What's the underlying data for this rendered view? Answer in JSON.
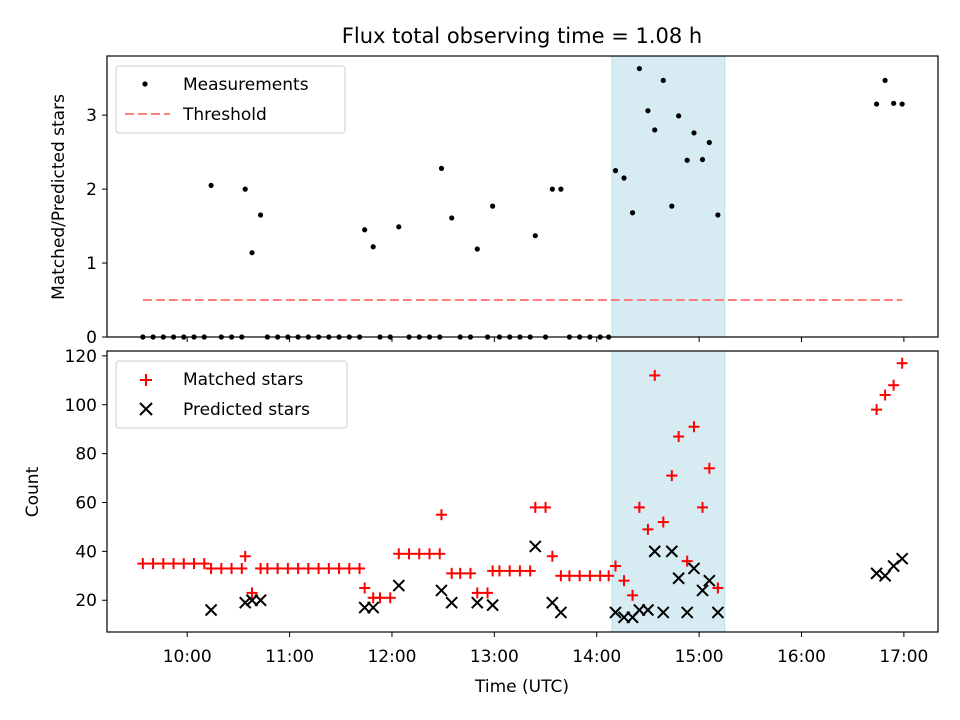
{
  "title": "Flux total observing time = 1.08 h",
  "shaded_span": {
    "start": "14:09",
    "end": "15:15",
    "color": "#add8e6"
  },
  "chart_data": [
    {
      "type": "scatter",
      "ylabel": "Matched/Predicted stars",
      "ylim": [
        0,
        3.8
      ],
      "yticks": [
        0,
        1,
        2,
        3
      ],
      "legend": {
        "location": "upper-left",
        "entries": [
          "Measurements",
          "Threshold"
        ]
      },
      "series": [
        {
          "name": "Measurements",
          "color": "#000000",
          "marker": "dot",
          "points": [
            [
              "09:34",
              0
            ],
            [
              "09:40",
              0
            ],
            [
              "09:46",
              0
            ],
            [
              "09:52",
              0
            ],
            [
              "09:58",
              0
            ],
            [
              "10:04",
              0
            ],
            [
              "10:10",
              0
            ],
            [
              "10:14",
              2.05
            ],
            [
              "10:20",
              0
            ],
            [
              "10:26",
              0
            ],
            [
              "10:32",
              0
            ],
            [
              "10:34",
              2.0
            ],
            [
              "10:38",
              1.14
            ],
            [
              "10:43",
              1.65
            ],
            [
              "10:47",
              0
            ],
            [
              "10:53",
              0
            ],
            [
              "10:59",
              0
            ],
            [
              "11:05",
              0
            ],
            [
              "11:11",
              0
            ],
            [
              "11:17",
              0
            ],
            [
              "11:23",
              0
            ],
            [
              "11:29",
              0
            ],
            [
              "11:35",
              0
            ],
            [
              "11:41",
              0
            ],
            [
              "11:44",
              1.45
            ],
            [
              "11:49",
              1.22
            ],
            [
              "11:53",
              0
            ],
            [
              "11:59",
              0
            ],
            [
              "12:04",
              1.49
            ],
            [
              "12:10",
              0
            ],
            [
              "12:16",
              0
            ],
            [
              "12:22",
              0
            ],
            [
              "12:28",
              0
            ],
            [
              "12:29",
              2.28
            ],
            [
              "12:35",
              1.61
            ],
            [
              "12:40",
              0
            ],
            [
              "12:46",
              0
            ],
            [
              "12:50",
              1.19
            ],
            [
              "12:56",
              0
            ],
            [
              "12:59",
              1.77
            ],
            [
              "13:03",
              0
            ],
            [
              "13:09",
              0
            ],
            [
              "13:15",
              0
            ],
            [
              "13:21",
              0
            ],
            [
              "13:24",
              1.37
            ],
            [
              "13:30",
              0
            ],
            [
              "13:34",
              2.0
            ],
            [
              "13:39",
              2.0
            ],
            [
              "13:44",
              0
            ],
            [
              "13:50",
              0
            ],
            [
              "13:56",
              0
            ],
            [
              "14:02",
              0
            ],
            [
              "14:07",
              0
            ],
            [
              "14:11",
              2.25
            ],
            [
              "14:16",
              2.15
            ],
            [
              "14:21",
              1.68
            ],
            [
              "14:25",
              3.63
            ],
            [
              "14:30",
              3.06
            ],
            [
              "14:34",
              2.8
            ],
            [
              "14:39",
              3.47
            ],
            [
              "14:44",
              1.77
            ],
            [
              "14:48",
              2.99
            ],
            [
              "14:53",
              2.39
            ],
            [
              "14:57",
              2.76
            ],
            [
              "15:02",
              2.4
            ],
            [
              "15:06",
              2.63
            ],
            [
              "15:11",
              1.65
            ],
            [
              "16:44",
              3.15
            ],
            [
              "16:49",
              3.47
            ],
            [
              "16:54",
              3.16
            ],
            [
              "16:59",
              3.15
            ]
          ]
        },
        {
          "name": "Threshold",
          "color": "#ff7f7f",
          "style": "dashed",
          "points": [
            [
              "09:34",
              0.5
            ],
            [
              "16:59",
              0.5
            ]
          ]
        }
      ]
    },
    {
      "type": "scatter",
      "xlabel": "Time (UTC)",
      "ylabel": "Count",
      "ylim": [
        7,
        122
      ],
      "yticks": [
        20,
        40,
        60,
        80,
        100,
        120
      ],
      "xticks": [
        "10:00",
        "11:00",
        "12:00",
        "13:00",
        "14:00",
        "15:00",
        "16:00",
        "17:00"
      ],
      "xlim": [
        "09:13",
        "17:20"
      ],
      "legend": {
        "location": "upper-left",
        "entries": [
          "Matched stars",
          "Predicted stars"
        ]
      },
      "series": [
        {
          "name": "Matched stars",
          "color": "#ff0000",
          "marker": "plus",
          "points": [
            [
              "09:34",
              35
            ],
            [
              "09:40",
              35
            ],
            [
              "09:46",
              35
            ],
            [
              "09:52",
              35
            ],
            [
              "09:58",
              35
            ],
            [
              "10:04",
              35
            ],
            [
              "10:10",
              35
            ],
            [
              "10:14",
              33
            ],
            [
              "10:20",
              33
            ],
            [
              "10:26",
              33
            ],
            [
              "10:32",
              33
            ],
            [
              "10:34",
              38
            ],
            [
              "10:38",
              23
            ],
            [
              "10:43",
              33
            ],
            [
              "10:47",
              33
            ],
            [
              "10:53",
              33
            ],
            [
              "10:59",
              33
            ],
            [
              "11:05",
              33
            ],
            [
              "11:11",
              33
            ],
            [
              "11:17",
              33
            ],
            [
              "11:23",
              33
            ],
            [
              "11:29",
              33
            ],
            [
              "11:35",
              33
            ],
            [
              "11:41",
              33
            ],
            [
              "11:44",
              25
            ],
            [
              "11:49",
              21
            ],
            [
              "11:53",
              21
            ],
            [
              "11:59",
              21
            ],
            [
              "12:04",
              39
            ],
            [
              "12:10",
              39
            ],
            [
              "12:16",
              39
            ],
            [
              "12:22",
              39
            ],
            [
              "12:28",
              39
            ],
            [
              "12:29",
              55
            ],
            [
              "12:35",
              31
            ],
            [
              "12:40",
              31
            ],
            [
              "12:46",
              31
            ],
            [
              "12:50",
              23
            ],
            [
              "12:56",
              23
            ],
            [
              "12:59",
              32
            ],
            [
              "13:03",
              32
            ],
            [
              "13:09",
              32
            ],
            [
              "13:15",
              32
            ],
            [
              "13:21",
              32
            ],
            [
              "13:24",
              58
            ],
            [
              "13:30",
              58
            ],
            [
              "13:34",
              38
            ],
            [
              "13:39",
              30
            ],
            [
              "13:44",
              30
            ],
            [
              "13:50",
              30
            ],
            [
              "13:56",
              30
            ],
            [
              "14:02",
              30
            ],
            [
              "14:07",
              30
            ],
            [
              "14:11",
              34
            ],
            [
              "14:16",
              28
            ],
            [
              "14:21",
              22
            ],
            [
              "14:25",
              58
            ],
            [
              "14:30",
              49
            ],
            [
              "14:34",
              112
            ],
            [
              "14:39",
              52
            ],
            [
              "14:44",
              71
            ],
            [
              "14:48",
              87
            ],
            [
              "14:53",
              36
            ],
            [
              "14:57",
              91
            ],
            [
              "15:02",
              58
            ],
            [
              "15:06",
              74
            ],
            [
              "15:11",
              25
            ],
            [
              "16:44",
              98
            ],
            [
              "16:49",
              104
            ],
            [
              "16:54",
              108
            ],
            [
              "16:59",
              117
            ]
          ]
        },
        {
          "name": "Predicted stars",
          "color": "#000000",
          "marker": "x",
          "points": [
            [
              "10:14",
              16
            ],
            [
              "10:34",
              19
            ],
            [
              "10:38",
              20
            ],
            [
              "10:43",
              20
            ],
            [
              "11:44",
              17
            ],
            [
              "11:49",
              17
            ],
            [
              "12:04",
              26
            ],
            [
              "12:29",
              24
            ],
            [
              "12:35",
              19
            ],
            [
              "12:50",
              19
            ],
            [
              "12:59",
              18
            ],
            [
              "13:24",
              42
            ],
            [
              "13:34",
              19
            ],
            [
              "13:39",
              15
            ],
            [
              "14:11",
              15
            ],
            [
              "14:16",
              13
            ],
            [
              "14:21",
              13
            ],
            [
              "14:25",
              16
            ],
            [
              "14:30",
              16
            ],
            [
              "14:34",
              40
            ],
            [
              "14:39",
              15
            ],
            [
              "14:44",
              40
            ],
            [
              "14:48",
              29
            ],
            [
              "14:53",
              15
            ],
            [
              "14:57",
              33
            ],
            [
              "15:02",
              24
            ],
            [
              "15:06",
              28
            ],
            [
              "15:11",
              15
            ],
            [
              "16:44",
              31
            ],
            [
              "16:49",
              30
            ],
            [
              "16:54",
              34
            ],
            [
              "16:59",
              37
            ]
          ]
        }
      ]
    }
  ]
}
